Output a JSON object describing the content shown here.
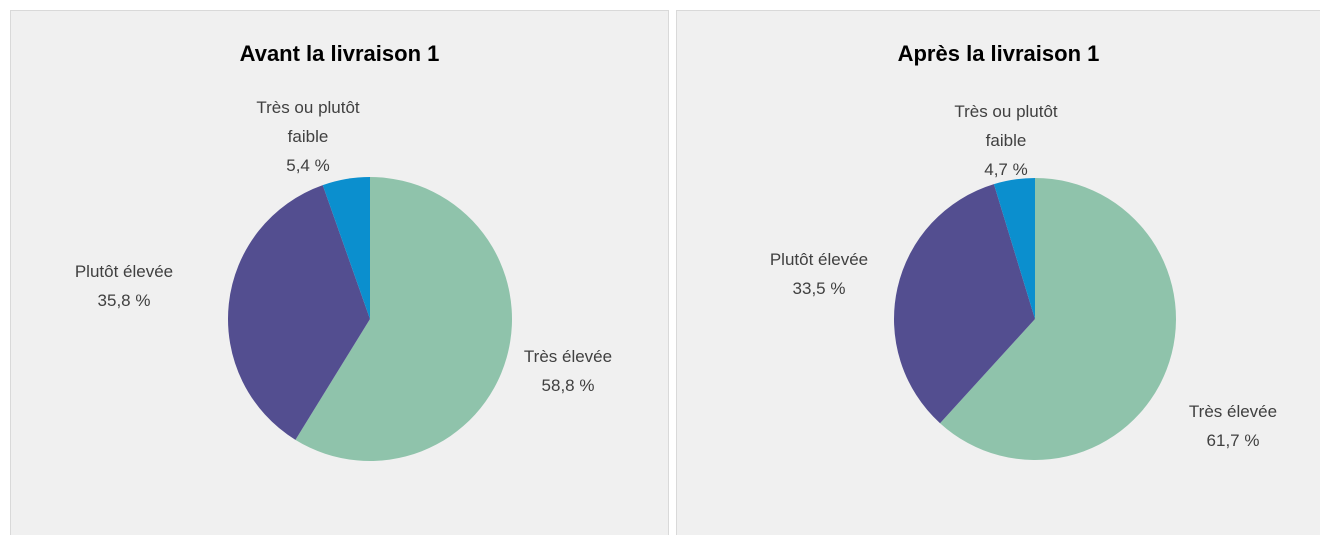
{
  "chart_data": [
    {
      "type": "pie",
      "title": "Avant la livraison 1",
      "categories": [
        "Très élevée",
        "Plutôt élevée",
        "Très ou plutôt faible"
      ],
      "values": [
        58.8,
        35.8,
        5.4
      ],
      "value_labels": [
        "58,8 %",
        "35,8 %",
        "5,4 %"
      ],
      "colors": [
        "#8fc3ab",
        "#534e90",
        "#0b8fce"
      ]
    },
    {
      "type": "pie",
      "title": "Après la livraison 1",
      "categories": [
        "Très élevée",
        "Plutôt élevée",
        "Très ou plutôt faible"
      ],
      "values": [
        61.7,
        33.5,
        4.7
      ],
      "value_labels": [
        "61,7 %",
        "33,5 %",
        "4,7 %"
      ],
      "colors": [
        "#8fc3ab",
        "#534e90",
        "#0b8fce"
      ]
    }
  ]
}
